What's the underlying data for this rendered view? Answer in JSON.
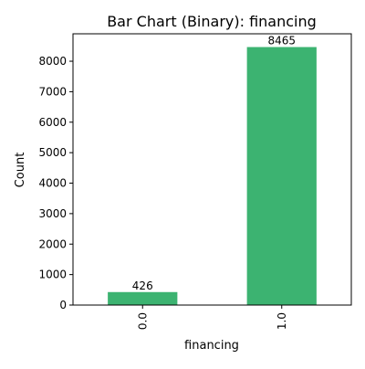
{
  "chart_data": {
    "type": "bar",
    "title": "Bar Chart (Binary): financing",
    "xlabel": "financing",
    "ylabel": "Count",
    "categories": [
      "0.0",
      "1.0"
    ],
    "values": [
      426,
      8465
    ],
    "data_labels": [
      "426",
      "8465"
    ],
    "ylim": [
      0,
      8900
    ],
    "yticks": [
      0,
      1000,
      2000,
      3000,
      4000,
      5000,
      6000,
      7000,
      8000
    ],
    "ytick_labels": [
      "0",
      "1000",
      "2000",
      "3000",
      "4000",
      "5000",
      "6000",
      "7000",
      "8000"
    ],
    "bar_color": "#3cb371",
    "grid": false,
    "legend": "none"
  }
}
